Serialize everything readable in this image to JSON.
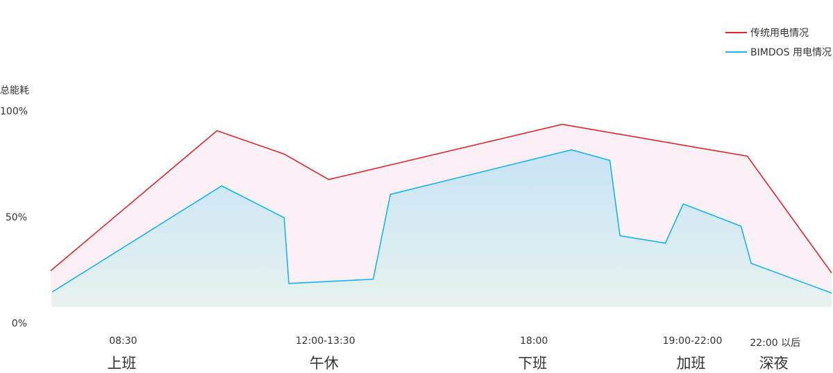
{
  "chart_data": {
    "type": "area",
    "title": "",
    "ylabel": "总能耗",
    "ylim": [
      0,
      100
    ],
    "yticks": [
      "0%",
      "50%",
      "100%"
    ],
    "x_unit": "percent of timeline",
    "xlim": [
      0,
      100
    ],
    "xticks": [
      {
        "x": 9.1,
        "time": "08:30",
        "label": "上班"
      },
      {
        "x": 35.0,
        "time": "12:00-13:30",
        "label": "午休"
      },
      {
        "x": 61.7,
        "time": "18:00",
        "label": "下班"
      },
      {
        "x": 82.0,
        "time": "19:00-22:00",
        "label": "加班"
      },
      {
        "x": 92.6,
        "time": "22:00 以后",
        "label": "深夜"
      }
    ],
    "baseline": 8,
    "legend_position": "top-right",
    "grid": false,
    "series": [
      {
        "name": "传统用电情况",
        "color": "#e0262b",
        "fill": "#fcf0f7",
        "points": [
          [
            0,
            25
          ],
          [
            21.3,
            91
          ],
          [
            29.9,
            80
          ],
          [
            35.6,
            68
          ],
          [
            65.5,
            94
          ],
          [
            89.2,
            79
          ],
          [
            100,
            24
          ]
        ]
      },
      {
        "name": "BIMDOS 用电情况",
        "color": "#16b4f2",
        "fill_top": "#c8e3f6",
        "fill_bottom": "#e6f2ee",
        "points": [
          [
            0.2,
            15
          ],
          [
            21.9,
            65
          ],
          [
            29.9,
            50
          ],
          [
            30.5,
            19
          ],
          [
            41.3,
            21
          ],
          [
            43.5,
            61
          ],
          [
            66.7,
            82
          ],
          [
            71.6,
            77
          ],
          [
            72.9,
            41.5
          ],
          [
            78.7,
            38
          ],
          [
            81.0,
            56.5
          ],
          [
            88.4,
            46
          ],
          [
            89.7,
            28.5
          ],
          [
            100,
            14.5
          ]
        ]
      }
    ]
  }
}
